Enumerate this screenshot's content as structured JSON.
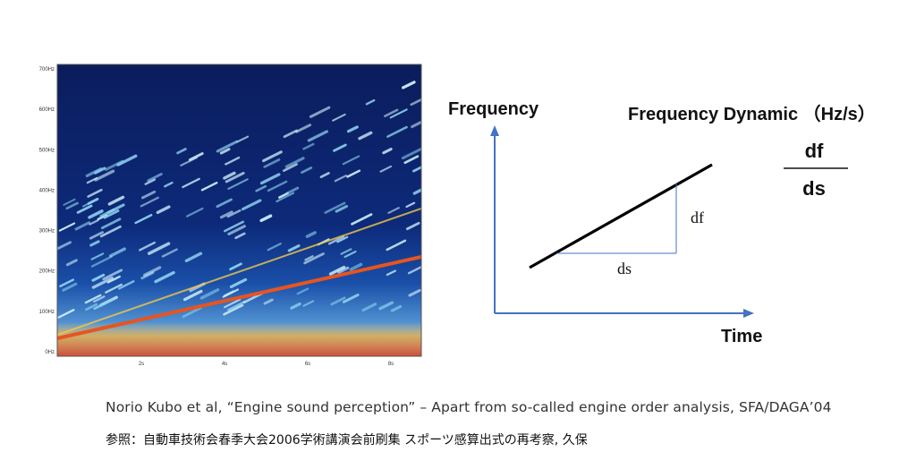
{
  "spectrogram": {
    "y_ticks": [
      "700Hz",
      "600Hz",
      "500Hz",
      "400Hz",
      "300Hz",
      "200Hz",
      "100Hz",
      "0Hz"
    ],
    "x_ticks": [
      "2s",
      "4s",
      "6s",
      "8s"
    ]
  },
  "diagram": {
    "y_axis_label": "Frequency",
    "x_axis_label": "Time",
    "title": "Frequency Dynamic （Hz/s）",
    "df_label": "df",
    "ds_label": "ds",
    "fraction_numerator": "df",
    "fraction_denominator": "ds",
    "axis_color": "#4472c4",
    "line_color": "#000000"
  },
  "captions": {
    "citation": "Norio Kubo et al, “Engine sound perception” – Apart from so-called engine order analysis, SFA/DAGA’04",
    "japanese": "参照：自動車技術会春季大会2006学術講演会前刷集 スポーツ感算出式の再考察, 久保"
  }
}
